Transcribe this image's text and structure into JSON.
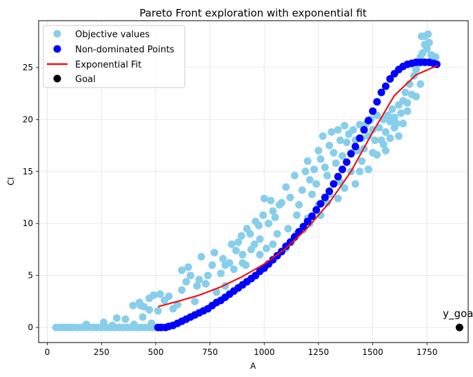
{
  "chart_data": {
    "type": "scatter",
    "title": "Pareto Front exploration with exponential fit",
    "xlabel": "A",
    "ylabel": "CI",
    "xlim": [
      -40,
      1940
    ],
    "ylim": [
      -1.45,
      29.5
    ],
    "xticks": [
      0,
      250,
      500,
      750,
      1000,
      1250,
      1500,
      1750
    ],
    "yticks": [
      0,
      5,
      10,
      15,
      20,
      25
    ],
    "grid": true,
    "legend_position": "top-left",
    "colors": {
      "objective": "#87ceeb",
      "pareto": "#0000ff",
      "fit": "#ee1111",
      "goal": "#000000"
    },
    "series": [
      {
        "name": "Objective values",
        "kind": "scatter",
        "color": "#87ceeb",
        "points": [
          [
            40,
            0
          ],
          [
            60,
            0
          ],
          [
            75,
            0
          ],
          [
            90,
            0
          ],
          [
            105,
            0
          ],
          [
            120,
            0
          ],
          [
            140,
            0
          ],
          [
            160,
            0
          ],
          [
            180,
            0
          ],
          [
            200,
            0
          ],
          [
            215,
            0
          ],
          [
            230,
            0
          ],
          [
            250,
            0
          ],
          [
            270,
            0
          ],
          [
            290,
            0
          ],
          [
            310,
            0
          ],
          [
            330,
            0
          ],
          [
            350,
            0
          ],
          [
            370,
            0
          ],
          [
            390,
            0
          ],
          [
            410,
            0
          ],
          [
            430,
            0
          ],
          [
            450,
            0
          ],
          [
            470,
            0
          ],
          [
            490,
            0
          ],
          [
            180,
            0.3
          ],
          [
            260,
            0.5
          ],
          [
            320,
            0.9
          ],
          [
            360,
            0.8
          ],
          [
            400,
            0.3
          ],
          [
            440,
            1.0
          ],
          [
            480,
            0.4
          ],
          [
            300,
            0.2
          ],
          [
            395,
            2.1
          ],
          [
            425,
            2.4
          ],
          [
            445,
            2.0
          ],
          [
            470,
            2.8
          ],
          [
            490,
            3.1
          ],
          [
            430,
            2.1
          ],
          [
            470,
            1.7
          ],
          [
            510,
            1.6
          ],
          [
            520,
            3.2
          ],
          [
            540,
            2.6
          ],
          [
            560,
            3.0
          ],
          [
            580,
            1.8
          ],
          [
            600,
            2.2
          ],
          [
            620,
            3.6
          ],
          [
            640,
            4.4
          ],
          [
            660,
            5.0
          ],
          [
            680,
            2.5
          ],
          [
            700,
            4.6
          ],
          [
            710,
            6.8
          ],
          [
            730,
            4.2
          ],
          [
            760,
            6.0
          ],
          [
            780,
            3.4
          ],
          [
            800,
            5.2
          ],
          [
            820,
            4.0
          ],
          [
            840,
            6.2
          ],
          [
            860,
            5.6
          ],
          [
            880,
            8.2
          ],
          [
            900,
            7.0
          ],
          [
            920,
            9.5
          ],
          [
            940,
            7.5
          ],
          [
            960,
            10.2
          ],
          [
            980,
            8.5
          ],
          [
            1000,
            12.4
          ],
          [
            1020,
            10.0
          ],
          [
            1040,
            11.2
          ],
          [
            1060,
            9.0
          ],
          [
            1080,
            12.0
          ],
          [
            620,
            5.5
          ],
          [
            650,
            5.8
          ],
          [
            690,
            4.0
          ],
          [
            740,
            5.0
          ],
          [
            770,
            7.2
          ],
          [
            810,
            6.6
          ],
          [
            850,
            8.0
          ],
          [
            870,
            7.4
          ],
          [
            895,
            8.8
          ],
          [
            915,
            6.0
          ],
          [
            935,
            9.0
          ],
          [
            955,
            8.0
          ],
          [
            975,
            9.8
          ],
          [
            995,
            10.8
          ],
          [
            1010,
            7.6
          ],
          [
            1030,
            12.2
          ],
          [
            1050,
            10.6
          ],
          [
            1070,
            11.8
          ],
          [
            1100,
            13.5
          ],
          [
            1110,
            9.5
          ],
          [
            1120,
            12.5
          ],
          [
            1140,
            14.6
          ],
          [
            1150,
            10.8
          ],
          [
            1160,
            11.8
          ],
          [
            1175,
            13.2
          ],
          [
            1190,
            15.0
          ],
          [
            1200,
            16.0
          ],
          [
            1210,
            14.2
          ],
          [
            1220,
            12.8
          ],
          [
            1230,
            15.2
          ],
          [
            1240,
            13.8
          ],
          [
            1250,
            17.0
          ],
          [
            1260,
            16.2
          ],
          [
            1270,
            18.4
          ],
          [
            1280,
            15.4
          ],
          [
            1290,
            14.6
          ],
          [
            1300,
            17.5
          ],
          [
            1310,
            18.8
          ],
          [
            1320,
            16.8
          ],
          [
            1330,
            15.8
          ],
          [
            1340,
            19.0
          ],
          [
            1350,
            18.0
          ],
          [
            1360,
            16.5
          ],
          [
            1370,
            19.4
          ],
          [
            1380,
            17.8
          ],
          [
            1390,
            18.6
          ],
          [
            1400,
            16.8
          ],
          [
            1410,
            19.0
          ],
          [
            1420,
            18.0
          ],
          [
            1430,
            17.0
          ],
          [
            1440,
            19.5
          ],
          [
            1450,
            18.2
          ],
          [
            1460,
            17.2
          ],
          [
            1470,
            19.6
          ],
          [
            1480,
            18.4
          ],
          [
            1490,
            20.0
          ],
          [
            1500,
            19.0
          ],
          [
            1510,
            18.0
          ],
          [
            1520,
            20.4
          ],
          [
            1530,
            19.2
          ],
          [
            1540,
            18.0
          ],
          [
            1550,
            20.0
          ],
          [
            1560,
            18.8
          ],
          [
            1570,
            20.4
          ],
          [
            1580,
            19.8
          ],
          [
            1590,
            21.0
          ],
          [
            1600,
            20.2
          ],
          [
            1610,
            19.6
          ],
          [
            1620,
            21.4
          ],
          [
            1630,
            20.6
          ],
          [
            1640,
            21.8
          ],
          [
            1650,
            22.6
          ],
          [
            1660,
            21.6
          ],
          [
            1670,
            23.4
          ],
          [
            1680,
            22.4
          ],
          [
            1690,
            24.2
          ],
          [
            1700,
            24.8
          ],
          [
            1710,
            25.4
          ],
          [
            1720,
            26.0
          ],
          [
            1730,
            26.4
          ],
          [
            1740,
            27.2
          ],
          [
            1750,
            26.8
          ],
          [
            1760,
            27.4
          ],
          [
            1770,
            26.2
          ],
          [
            1780,
            25.6
          ],
          [
            1790,
            26.0
          ],
          [
            1740,
            28.0
          ],
          [
            1755,
            28.2
          ],
          [
            1725,
            28.0
          ],
          [
            1150,
            9.0
          ],
          [
            1200,
            10.5
          ],
          [
            1250,
            11.8
          ],
          [
            1300,
            12.8
          ],
          [
            1350,
            14.0
          ],
          [
            1400,
            15.0
          ],
          [
            1450,
            16.0
          ],
          [
            1500,
            16.8
          ],
          [
            1550,
            17.6
          ],
          [
            1600,
            19.2
          ],
          [
            1620,
            18.4
          ],
          [
            1100,
            7.6
          ],
          [
            1180,
            9.4
          ],
          [
            1260,
            10.8
          ],
          [
            1340,
            12.4
          ],
          [
            1420,
            13.8
          ],
          [
            1480,
            15.2
          ],
          [
            1560,
            17.0
          ],
          [
            1640,
            19.6
          ],
          [
            1700,
            22.2
          ],
          [
            820,
            6.0
          ],
          [
            900,
            6.2
          ],
          [
            980,
            7.0
          ],
          [
            1040,
            8.0
          ],
          [
            1130,
            8.4
          ],
          [
            1210,
            10.0
          ],
          [
            1290,
            12.0
          ],
          [
            1370,
            13.4
          ],
          [
            1440,
            15.0
          ],
          [
            1520,
            16.6
          ],
          [
            1580,
            18.2
          ],
          [
            1660,
            20.8
          ],
          [
            1720,
            23.4
          ]
        ]
      },
      {
        "name": "Non-dominated Points",
        "kind": "scatter",
        "color": "#0000ff",
        "points": [
          [
            510,
            0
          ],
          [
            525,
            0
          ],
          [
            545,
            0
          ],
          [
            560,
            0.1
          ],
          [
            580,
            0.2
          ],
          [
            600,
            0.4
          ],
          [
            620,
            0.6
          ],
          [
            640,
            0.8
          ],
          [
            660,
            1.0
          ],
          [
            680,
            1.2
          ],
          [
            700,
            1.4
          ],
          [
            720,
            1.6
          ],
          [
            740,
            1.8
          ],
          [
            760,
            2.1
          ],
          [
            780,
            2.4
          ],
          [
            800,
            2.6
          ],
          [
            820,
            2.9
          ],
          [
            840,
            3.2
          ],
          [
            860,
            3.5
          ],
          [
            880,
            3.8
          ],
          [
            900,
            4.1
          ],
          [
            920,
            4.4
          ],
          [
            940,
            4.7
          ],
          [
            960,
            5.0
          ],
          [
            980,
            5.4
          ],
          [
            1000,
            5.7
          ],
          [
            1020,
            6.1
          ],
          [
            1040,
            6.5
          ],
          [
            1060,
            6.9
          ],
          [
            1080,
            7.3
          ],
          [
            1100,
            7.8
          ],
          [
            1120,
            8.2
          ],
          [
            1140,
            8.7
          ],
          [
            1160,
            9.2
          ],
          [
            1180,
            9.7
          ],
          [
            1200,
            10.2
          ],
          [
            1220,
            10.7
          ],
          [
            1240,
            11.3
          ],
          [
            1260,
            11.9
          ],
          [
            1280,
            12.5
          ],
          [
            1300,
            13.1
          ],
          [
            1320,
            13.8
          ],
          [
            1340,
            14.5
          ],
          [
            1360,
            15.2
          ],
          [
            1380,
            15.9
          ],
          [
            1400,
            16.7
          ],
          [
            1420,
            17.4
          ],
          [
            1440,
            18.2
          ],
          [
            1460,
            19.0
          ],
          [
            1480,
            19.9
          ],
          [
            1500,
            20.8
          ],
          [
            1520,
            21.7
          ],
          [
            1540,
            22.6
          ],
          [
            1560,
            23.2
          ],
          [
            1580,
            23.9
          ],
          [
            1600,
            24.4
          ],
          [
            1620,
            24.8
          ],
          [
            1640,
            25.1
          ],
          [
            1660,
            25.3
          ],
          [
            1680,
            25.4
          ],
          [
            1700,
            25.5
          ],
          [
            1720,
            25.5
          ],
          [
            1740,
            25.5
          ],
          [
            1760,
            25.5
          ],
          [
            1780,
            25.4
          ],
          [
            1795,
            25.3
          ]
        ]
      },
      {
        "name": "Exponential Fit",
        "kind": "line",
        "color": "#ee1111",
        "points": [
          [
            510,
            2.0
          ],
          [
            600,
            2.5
          ],
          [
            700,
            3.1
          ],
          [
            800,
            3.9
          ],
          [
            900,
            4.9
          ],
          [
            1000,
            6.1
          ],
          [
            1100,
            7.6
          ],
          [
            1200,
            9.6
          ],
          [
            1300,
            12.0
          ],
          [
            1400,
            15.0
          ],
          [
            1500,
            18.8
          ],
          [
            1600,
            22.3
          ],
          [
            1700,
            24.3
          ],
          [
            1800,
            25.2
          ]
        ]
      },
      {
        "name": "Goal",
        "kind": "scatter",
        "color": "#000000",
        "points": [
          [
            1900,
            0
          ]
        ]
      }
    ],
    "annotations": [
      {
        "text": "y_goal",
        "x": 1900,
        "y": 0
      }
    ]
  }
}
